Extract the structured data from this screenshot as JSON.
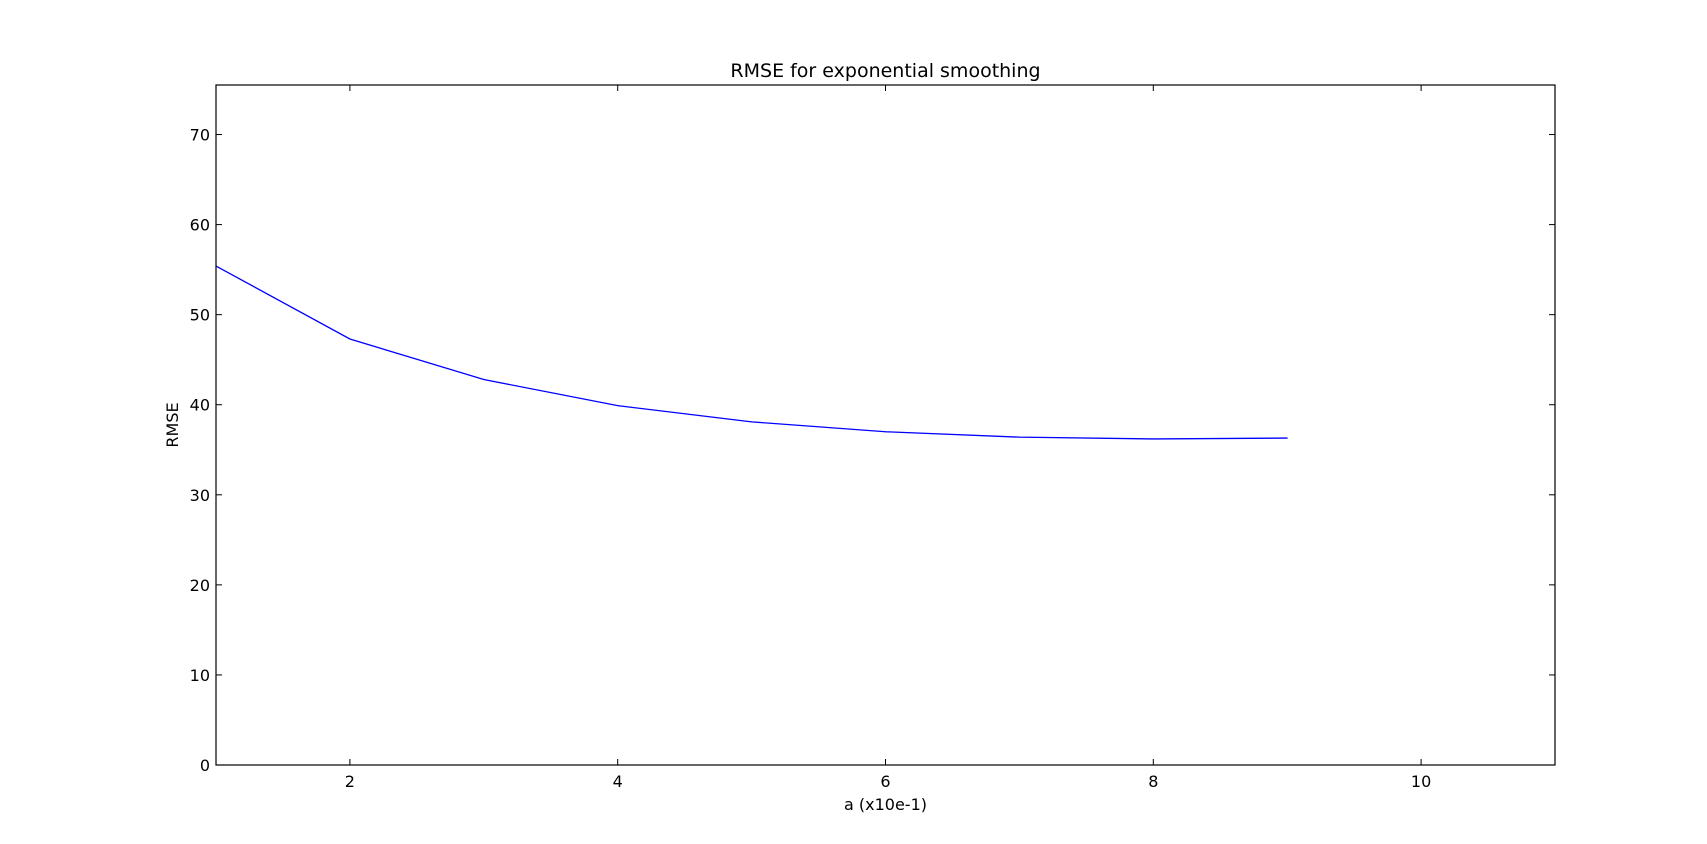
{
  "chart_data": {
    "type": "line",
    "title": "RMSE for exponential smoothing",
    "xlabel": "a (x10e-1)",
    "ylabel": "RMSE",
    "xlim": [
      1,
      11
    ],
    "ylim": [
      0,
      75.5
    ],
    "xticks": [
      2,
      4,
      6,
      8,
      10
    ],
    "yticks": [
      0,
      10,
      20,
      30,
      40,
      50,
      60,
      70
    ],
    "grid": false,
    "legend": "none",
    "series": [
      {
        "color": "#0000ff",
        "x": [
          1,
          2,
          3,
          4,
          5,
          6,
          7,
          8,
          9
        ],
        "y": [
          55.4,
          47.3,
          42.8,
          39.9,
          38.1,
          37.0,
          36.4,
          36.2,
          36.3
        ]
      }
    ]
  }
}
